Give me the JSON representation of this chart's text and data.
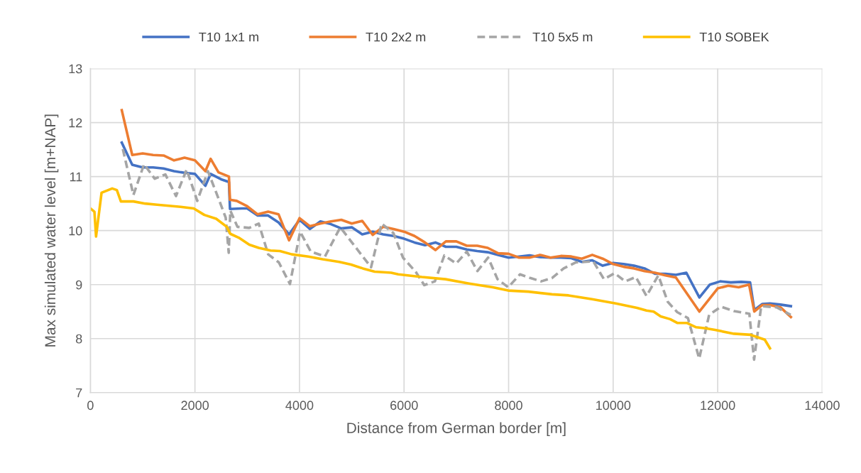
{
  "chart_data": {
    "type": "line",
    "xlabel": "Distance from German border [m]",
    "ylabel": "Max simulated water level [m+NAP]",
    "xlim": [
      0,
      14000
    ],
    "xticks": [
      0,
      2000,
      4000,
      6000,
      8000,
      10000,
      12000,
      14000
    ],
    "ylim": [
      7,
      13
    ],
    "yticks": [
      7,
      8,
      9,
      10,
      11,
      12,
      13
    ],
    "grid": true,
    "legend": "top",
    "marker": "none",
    "series": [
      {
        "name": "T10 1x1 m",
        "color": "#4472c4",
        "line_style": "solid",
        "x": [
          600,
          800,
          1000,
          1200,
          1400,
          1600,
          1800,
          2000,
          2200,
          2300,
          2500,
          2650,
          2670,
          2900,
          3000,
          3200,
          3400,
          3600,
          3800,
          4000,
          4200,
          4400,
          4600,
          4800,
          5000,
          5200,
          5400,
          5600,
          5800,
          6000,
          6200,
          6400,
          6600,
          6800,
          7000,
          7200,
          7400,
          7600,
          7800,
          8000,
          8200,
          8400,
          8600,
          8800,
          9000,
          9200,
          9400,
          9600,
          9800,
          10000,
          10200,
          10400,
          10600,
          10800,
          11000,
          11200,
          11400,
          11650,
          11850,
          12050,
          12250,
          12450,
          12620,
          12700,
          12850,
          13000,
          13200,
          13400
        ],
        "values": [
          11.63,
          11.22,
          11.17,
          11.17,
          11.15,
          11.1,
          11.07,
          11.05,
          10.83,
          11.05,
          10.95,
          10.9,
          10.4,
          10.41,
          10.41,
          10.28,
          10.28,
          10.15,
          9.93,
          10.2,
          10.03,
          10.17,
          10.12,
          10.04,
          10.06,
          9.93,
          9.98,
          9.93,
          9.9,
          9.85,
          9.78,
          9.73,
          9.78,
          9.7,
          9.7,
          9.65,
          9.62,
          9.6,
          9.55,
          9.5,
          9.52,
          9.54,
          9.51,
          9.5,
          9.5,
          9.49,
          9.42,
          9.45,
          9.35,
          9.4,
          9.38,
          9.35,
          9.3,
          9.2,
          9.2,
          9.18,
          9.22,
          8.76,
          9.0,
          9.06,
          9.04,
          9.05,
          9.04,
          8.53,
          8.64,
          8.65,
          8.63,
          8.6
        ]
      },
      {
        "name": "T10 2x2 m",
        "color": "#ed7d31",
        "line_style": "solid",
        "x": [
          600,
          800,
          1000,
          1200,
          1400,
          1600,
          1800,
          2000,
          2200,
          2300,
          2450,
          2650,
          2670,
          2800,
          3000,
          3200,
          3400,
          3600,
          3800,
          4000,
          4200,
          4400,
          4600,
          4800,
          5000,
          5200,
          5400,
          5600,
          5800,
          6000,
          6200,
          6400,
          6600,
          6800,
          7000,
          7200,
          7400,
          7600,
          7800,
          8000,
          8200,
          8400,
          8600,
          8800,
          9000,
          9200,
          9400,
          9600,
          9800,
          10000,
          10200,
          10400,
          10600,
          10800,
          11000,
          11200,
          11650,
          12000,
          12200,
          12400,
          12600,
          12700,
          12850,
          13000,
          13200,
          13400
        ],
        "values": [
          12.23,
          11.4,
          11.43,
          11.4,
          11.39,
          11.3,
          11.35,
          11.3,
          11.1,
          11.33,
          11.08,
          11.0,
          10.57,
          10.55,
          10.45,
          10.3,
          10.35,
          10.3,
          9.82,
          10.23,
          10.08,
          10.13,
          10.17,
          10.2,
          10.13,
          10.18,
          9.92,
          10.07,
          10.03,
          9.98,
          9.9,
          9.78,
          9.64,
          9.8,
          9.8,
          9.72,
          9.72,
          9.68,
          9.58,
          9.57,
          9.5,
          9.5,
          9.55,
          9.5,
          9.53,
          9.52,
          9.48,
          9.55,
          9.48,
          9.38,
          9.33,
          9.3,
          9.25,
          9.22,
          9.17,
          9.13,
          8.5,
          8.93,
          8.98,
          8.95,
          9.0,
          8.5,
          8.62,
          8.62,
          8.58,
          8.4
        ]
      },
      {
        "name": "T10 5x5 m",
        "color": "#a5a5a5",
        "line_style": "dashed",
        "x": [
          620,
          823,
          1027,
          1230,
          1434,
          1637,
          1841,
          2044,
          2248,
          2452,
          2588,
          2646,
          2677,
          2813,
          3039,
          3220,
          3401,
          3605,
          3817,
          4012,
          4216,
          4487,
          4780,
          5369,
          5572,
          5798,
          5979,
          6228,
          6386,
          6590,
          6771,
          6997,
          7201,
          7404,
          7608,
          7788,
          7992,
          8218,
          8421,
          8625,
          8828,
          9054,
          9281,
          9620,
          9824,
          10027,
          10231,
          10434,
          10638,
          10864,
          11045,
          11226,
          11430,
          11646,
          11836,
          12063,
          12311,
          12605,
          12696,
          12832,
          13125,
          13396
        ],
        "values": [
          11.51,
          10.66,
          11.23,
          10.96,
          11.04,
          10.64,
          11.13,
          10.55,
          11.1,
          10.59,
          10.24,
          9.59,
          10.37,
          10.07,
          10.05,
          10.13,
          9.56,
          9.41,
          9.01,
          9.98,
          9.61,
          9.52,
          10.06,
          9.32,
          10.13,
          9.95,
          9.5,
          9.23,
          8.99,
          9.06,
          9.54,
          9.39,
          9.61,
          9.25,
          9.5,
          9.1,
          8.95,
          9.19,
          9.12,
          9.06,
          9.12,
          9.3,
          9.41,
          9.43,
          9.1,
          9.21,
          9.06,
          9.14,
          8.79,
          9.17,
          8.68,
          8.49,
          8.38,
          7.63,
          8.44,
          8.59,
          8.51,
          8.46,
          7.61,
          8.6,
          8.58,
          8.44
        ]
      },
      {
        "name": "T10 SOBEK",
        "color": "#ffc000",
        "line_style": "solid",
        "x": [
          0,
          77,
          108,
          213,
          417,
          506,
          583,
          823,
          1049,
          1275,
          1727,
          1977,
          2180,
          2406,
          2609,
          2677,
          2836,
          3039,
          3220,
          3446,
          3627,
          3853,
          4170,
          4441,
          4759,
          4985,
          5210,
          5437,
          5753,
          5889,
          6340,
          6792,
          7245,
          7697,
          7992,
          8376,
          8828,
          9145,
          9597,
          10050,
          10457,
          10638,
          10774,
          10909,
          11090,
          11226,
          11407,
          11588,
          11768,
          11949,
          12311,
          12628,
          12900,
          13000
        ],
        "values": [
          10.41,
          10.35,
          9.89,
          10.7,
          10.78,
          10.75,
          10.54,
          10.54,
          10.5,
          10.48,
          10.44,
          10.41,
          10.29,
          10.22,
          10.07,
          9.94,
          9.87,
          9.74,
          9.68,
          9.63,
          9.62,
          9.56,
          9.52,
          9.47,
          9.42,
          9.37,
          9.3,
          9.24,
          9.22,
          9.19,
          9.14,
          9.1,
          9.02,
          8.95,
          8.89,
          8.87,
          8.82,
          8.8,
          8.73,
          8.65,
          8.57,
          8.52,
          8.5,
          8.41,
          8.36,
          8.29,
          8.29,
          8.21,
          8.19,
          8.16,
          8.09,
          8.07,
          7.98,
          7.82
        ]
      }
    ]
  }
}
